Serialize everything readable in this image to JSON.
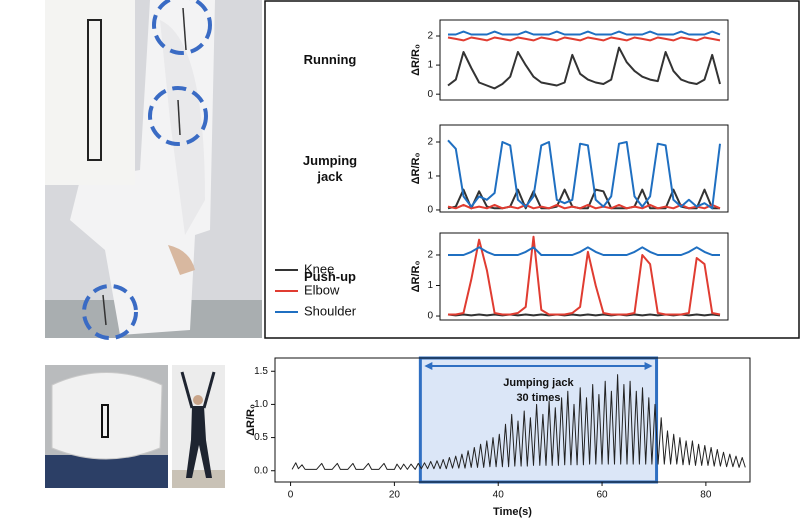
{
  "chart_data": [
    {
      "type": "line",
      "title": "Running",
      "ylabel": "ΔR/R₀",
      "ylim": [
        -0.2,
        2.55
      ],
      "yticks": [
        0,
        1,
        2
      ],
      "series": [
        {
          "name": "Knee",
          "color": "#333333",
          "values": [
            0.3,
            0.5,
            1.45,
            0.9,
            0.4,
            0.3,
            0.2,
            0.35,
            0.6,
            1.45,
            1.0,
            0.6,
            0.4,
            0.35,
            0.3,
            0.4,
            1.35,
            0.7,
            0.5,
            0.4,
            0.35,
            0.5,
            1.6,
            1.1,
            0.8,
            0.6,
            0.5,
            0.45,
            1.45,
            0.8,
            0.5,
            0.4,
            0.35,
            0.5,
            1.35,
            0.35
          ]
        },
        {
          "name": "Elbow",
          "color": "#e03c31",
          "values": [
            1.95,
            1.9,
            1.85,
            1.95,
            1.9,
            1.85,
            1.95,
            1.9,
            1.85,
            1.95,
            1.9,
            1.85,
            1.95,
            1.9,
            1.85,
            1.95,
            1.9,
            1.85,
            1.95,
            1.9,
            1.85,
            1.95,
            1.9,
            1.85,
            1.95,
            1.9,
            1.85,
            1.95,
            1.9,
            1.85,
            1.95,
            1.9,
            1.85,
            1.95,
            1.9,
            1.85
          ]
        },
        {
          "name": "Shoulder",
          "color": "#1f6fc1",
          "values": [
            2.05,
            2.05,
            2.15,
            2.05,
            2.05,
            2.05,
            2.15,
            2.05,
            2.05,
            2.05,
            2.15,
            2.05,
            2.05,
            2.05,
            2.15,
            2.05,
            2.05,
            2.05,
            2.15,
            2.05,
            2.05,
            2.05,
            2.15,
            2.05,
            2.05,
            2.05,
            2.15,
            2.05,
            2.05,
            2.05,
            2.15,
            2.05,
            2.05,
            2.05,
            2.15,
            2.05
          ]
        }
      ]
    },
    {
      "type": "line",
      "title": "Jumping\njack",
      "ylabel": "ΔR/R₀",
      "ylim": [
        -0.06,
        2.5
      ],
      "yticks": [
        0,
        1,
        2
      ],
      "series": [
        {
          "name": "Knee",
          "color": "#333333",
          "values": [
            0.05,
            0.1,
            0.6,
            0.05,
            0.55,
            0.1,
            0.05,
            0.05,
            0.1,
            0.6,
            0.05,
            0.55,
            0.05,
            0.05,
            0.1,
            0.6,
            0.1,
            0.05,
            0.05,
            0.6,
            0.55,
            0.05,
            0.05,
            0.05,
            0.1,
            0.6,
            0.05,
            0.05,
            0.05,
            0.6,
            0.1,
            0.05,
            0.05,
            0.6,
            0.05,
            0.05
          ]
        },
        {
          "name": "Elbow",
          "color": "#e03c31",
          "values": [
            0.1,
            0.05,
            0.15,
            0.05,
            0.1,
            0.05,
            0.15,
            0.05,
            0.1,
            0.05,
            0.15,
            0.05,
            0.1,
            0.05,
            0.15,
            0.05,
            0.1,
            0.05,
            0.15,
            0.05,
            0.1,
            0.05,
            0.15,
            0.05,
            0.1,
            0.05,
            0.15,
            0.05,
            0.1,
            0.05,
            0.15,
            0.05,
            0.1,
            0.05,
            0.15,
            0.05
          ]
        },
        {
          "name": "Shoulder",
          "color": "#1f6fc1",
          "values": [
            2.05,
            1.8,
            0.4,
            0.1,
            0.4,
            0.3,
            0.5,
            2.0,
            1.9,
            0.3,
            0.1,
            0.4,
            1.9,
            2.0,
            0.3,
            0.2,
            0.3,
            1.95,
            1.9,
            0.3,
            0.1,
            0.4,
            1.95,
            2.0,
            0.4,
            0.1,
            0.4,
            1.95,
            1.9,
            0.3,
            0.1,
            0.3,
            0.1,
            0.2,
            0.05,
            1.95
          ]
        }
      ]
    },
    {
      "type": "line",
      "title": "Push-up",
      "ylabel": "ΔR/R₀",
      "ylim": [
        -0.13,
        2.72
      ],
      "yticks": [
        0,
        1,
        2
      ],
      "legend": true,
      "series": [
        {
          "name": "Knee",
          "color": "#333333",
          "values": [
            0.05,
            0.02,
            0.05,
            0.02,
            0.05,
            0.02,
            0.05,
            0.02,
            0.05,
            0.02,
            0.05,
            0.02,
            0.05,
            0.02,
            0.05,
            0.02,
            0.05,
            0.02,
            0.05,
            0.02,
            0.05,
            0.02,
            0.05,
            0.02,
            0.05,
            0.02,
            0.05,
            0.02,
            0.05,
            0.02,
            0.05,
            0.02,
            0.05,
            0.02,
            0.05,
            0.02
          ]
        },
        {
          "name": "Elbow",
          "color": "#e03c31",
          "values": [
            0.05,
            0.05,
            0.1,
            1.2,
            2.5,
            1.5,
            0.1,
            0.05,
            0.05,
            0.1,
            0.3,
            2.6,
            0.2,
            0.05,
            0.05,
            0.05,
            0.1,
            0.3,
            2.1,
            1.0,
            0.1,
            0.05,
            0.05,
            0.05,
            0.1,
            2.0,
            1.7,
            0.1,
            0.05,
            0.05,
            0.05,
            0.1,
            1.9,
            1.7,
            0.1,
            0.05
          ]
        },
        {
          "name": "Shoulder",
          "color": "#1f6fc1",
          "values": [
            2.0,
            2.0,
            2.0,
            2.1,
            2.25,
            2.1,
            2.0,
            2.0,
            2.0,
            2.0,
            2.1,
            2.25,
            2.0,
            2.0,
            2.0,
            2.0,
            2.0,
            2.1,
            2.25,
            2.1,
            2.0,
            2.0,
            2.0,
            2.0,
            2.1,
            2.25,
            2.1,
            2.0,
            2.0,
            2.0,
            2.0,
            2.1,
            2.25,
            2.1,
            2.0,
            2.0
          ]
        }
      ]
    },
    {
      "type": "line",
      "xlabel": "Time(s)",
      "ylabel": "ΔR/R₀",
      "color": "#222222",
      "xlim": [
        -3,
        88.5
      ],
      "xticks": [
        0,
        20,
        40,
        60,
        80
      ],
      "ylim": [
        -0.17,
        1.7
      ],
      "yticks": [
        {
          "value": 0,
          "label": "0.0"
        },
        0.5,
        {
          "value": 1,
          "label": "1.0"
        },
        1.5
      ],
      "highlight": [
        25,
        70.5
      ],
      "annotation": "Jumping jack\n30 times",
      "x": [
        0.3,
        1,
        1.5,
        2.2,
        2.8,
        5,
        6,
        6.6,
        8,
        9,
        9.6,
        11,
        12,
        12.6,
        14,
        15,
        15.6,
        17,
        18,
        18.6,
        20,
        20.5,
        21.2,
        21.8,
        22.5,
        23.2,
        24,
        24.6,
        25.2,
        25.8,
        26.4,
        27,
        27.6,
        28.2,
        28.8,
        29.4,
        30,
        30.6,
        31.2,
        31.8,
        32.4,
        33,
        33.6,
        34.2,
        34.8,
        35.4,
        36,
        36.6,
        37.2,
        37.8,
        38.4,
        39,
        39.6,
        40.2,
        40.8,
        41.4,
        42,
        42.6,
        43.2,
        43.8,
        44.4,
        45,
        45.6,
        46.2,
        46.8,
        47.4,
        48,
        48.6,
        49.2,
        49.8,
        50.4,
        51,
        51.6,
        52.2,
        52.8,
        53.4,
        54,
        54.6,
        55.2,
        55.8,
        56.4,
        57,
        57.6,
        58.2,
        58.8,
        59.4,
        60,
        60.6,
        61.2,
        61.8,
        62.4,
        63,
        63.6,
        64.2,
        64.8,
        65.4,
        66,
        66.6,
        67.2,
        67.8,
        68.4,
        69,
        69.6,
        70.2,
        70.8,
        71.4,
        72,
        72.6,
        73.2,
        73.8,
        74.4,
        75,
        75.6,
        76.2,
        76.8,
        77.4,
        78,
        78.6,
        79.2,
        79.8,
        80.4,
        81,
        81.6,
        82.2,
        82.8,
        83.4,
        84,
        84.6,
        85.2,
        85.8,
        86.4,
        87,
        87.6
      ],
      "values": [
        0.02,
        0.12,
        0.03,
        0.09,
        0.02,
        0.02,
        0.11,
        0.02,
        0.02,
        0.11,
        0.02,
        0.02,
        0.11,
        0.02,
        0.02,
        0.11,
        0.02,
        0.02,
        0.11,
        0.02,
        0.02,
        0.1,
        0.02,
        0.1,
        0.02,
        0.1,
        0.02,
        0.11,
        0.03,
        0.12,
        0.03,
        0.14,
        0.03,
        0.15,
        0.03,
        0.17,
        0.03,
        0.2,
        0.04,
        0.22,
        0.04,
        0.25,
        0.04,
        0.3,
        0.05,
        0.35,
        0.05,
        0.4,
        0.05,
        0.45,
        0.06,
        0.5,
        0.06,
        0.55,
        0.06,
        0.7,
        0.06,
        0.85,
        0.07,
        0.75,
        0.07,
        0.9,
        0.07,
        0.8,
        0.08,
        1.0,
        0.08,
        0.85,
        0.08,
        1.05,
        0.08,
        0.95,
        0.08,
        1.1,
        0.09,
        1.2,
        0.09,
        1.0,
        0.09,
        1.25,
        0.09,
        1.1,
        0.1,
        1.3,
        0.1,
        1.15,
        0.1,
        1.35,
        0.1,
        1.2,
        0.1,
        1.45,
        0.1,
        1.3,
        0.1,
        1.35,
        0.1,
        1.2,
        0.1,
        1.25,
        0.1,
        1.1,
        0.1,
        1.0,
        0.1,
        0.8,
        0.1,
        0.6,
        0.1,
        0.55,
        0.1,
        0.5,
        0.09,
        0.45,
        0.09,
        0.45,
        0.08,
        0.4,
        0.08,
        0.38,
        0.08,
        0.35,
        0.07,
        0.32,
        0.07,
        0.28,
        0.06,
        0.25,
        0.06,
        0.22,
        0.05,
        0.2,
        0.05
      ]
    }
  ]
}
